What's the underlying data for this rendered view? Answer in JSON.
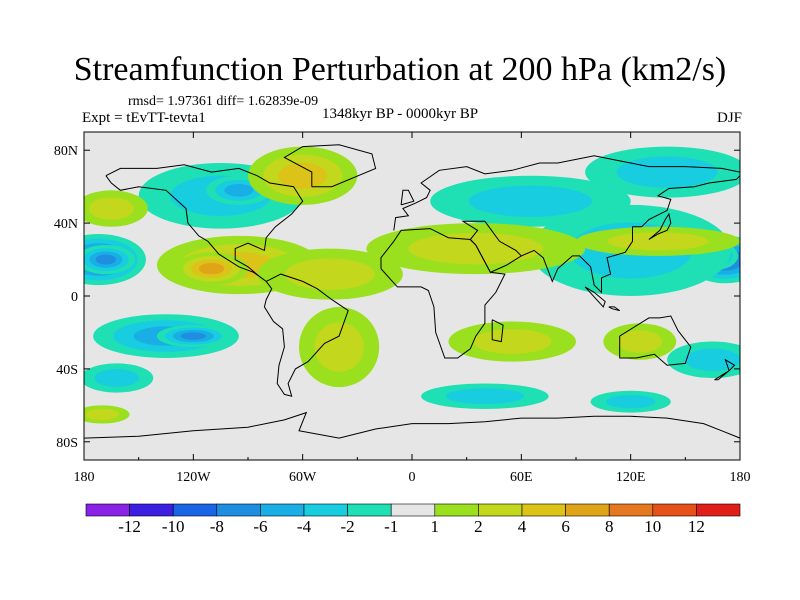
{
  "chart_data": {
    "type": "heatmap",
    "title": "Streamfunction Perturbation at 200 hPa (km2/s)",
    "stats": "rmsd= 1.97361  diff= 1.62839e-09",
    "experiment": "Expt = tEvTT-tevta1",
    "period": "1348kyr BP - 0000kyr BP",
    "season": "DJF",
    "xlim": [
      -180,
      180
    ],
    "ylim": [
      -90,
      90
    ],
    "x_ticks": [
      {
        "value": -180,
        "label": "180"
      },
      {
        "value": -120,
        "label": "120W"
      },
      {
        "value": -60,
        "label": "60W"
      },
      {
        "value": 0,
        "label": "0"
      },
      {
        "value": 60,
        "label": "60E"
      },
      {
        "value": 120,
        "label": "120E"
      },
      {
        "value": 180,
        "label": "180"
      }
    ],
    "y_ticks": [
      {
        "value": 80,
        "label": "80N"
      },
      {
        "value": 40,
        "label": "40N"
      },
      {
        "value": 0,
        "label": "0"
      },
      {
        "value": -40,
        "label": "40S"
      },
      {
        "value": -80,
        "label": "80S"
      }
    ],
    "colorbar": {
      "colors": [
        "#8a23e6",
        "#3c1fe0",
        "#1a64e6",
        "#1f8ee0",
        "#19afe6",
        "#19cde0",
        "#1fe0b4",
        "#e6e6e6",
        "#9be01f",
        "#c3d71c",
        "#dcc318",
        "#e0a419",
        "#e6781f",
        "#e65019",
        "#e11e19"
      ],
      "labels": [
        "-12",
        "-10",
        "-8",
        "-6",
        "-4",
        "-2",
        "-1",
        "1",
        "2",
        "4",
        "6",
        "8",
        "10",
        "12"
      ]
    },
    "anomalies": [
      {
        "lon": -172,
        "lat": 20,
        "rlon": 26,
        "rlat": 14,
        "v": -9
      },
      {
        "lon": -168,
        "lat": 20,
        "rlon": 16,
        "rlat": 8,
        "v": -7
      },
      {
        "lon": 172,
        "lat": 20,
        "rlon": 22,
        "rlat": 13,
        "v": -9
      },
      {
        "lon": 165,
        "lat": 22,
        "rlon": 14,
        "rlat": 8,
        "v": -7
      },
      {
        "lon": 120,
        "lat": 25,
        "rlon": 55,
        "rlat": 25,
        "v": -3
      },
      {
        "lon": 135,
        "lat": 30,
        "rlon": 45,
        "rlat": 8,
        "v": 3
      },
      {
        "lon": 140,
        "lat": 68,
        "rlon": 45,
        "rlat": 14,
        "v": -2
      },
      {
        "lon": 65,
        "lat": 52,
        "rlon": 55,
        "rlat": 14,
        "v": -3
      },
      {
        "lon": -105,
        "lat": 55,
        "rlon": 45,
        "rlat": 18,
        "v": -3
      },
      {
        "lon": -95,
        "lat": 58,
        "rlon": 18,
        "rlat": 8,
        "v": -5
      },
      {
        "lon": -60,
        "lat": 66,
        "rlon": 30,
        "rlat": 16,
        "v": 4
      },
      {
        "lon": -165,
        "lat": 48,
        "rlon": 20,
        "rlat": 10,
        "v": 3
      },
      {
        "lon": -95,
        "lat": 17,
        "rlon": 45,
        "rlat": 16,
        "v": 5
      },
      {
        "lon": -110,
        "lat": 15,
        "rlon": 20,
        "rlat": 9,
        "v": 7
      },
      {
        "lon": -45,
        "lat": 12,
        "rlon": 40,
        "rlat": 14,
        "v": 3
      },
      {
        "lon": 35,
        "lat": 26,
        "rlon": 60,
        "rlat": 14,
        "v": 3
      },
      {
        "lon": -135,
        "lat": -22,
        "rlon": 40,
        "rlat": 12,
        "v": -4
      },
      {
        "lon": -120,
        "lat": -22,
        "rlon": 20,
        "rlat": 6,
        "v": -7
      },
      {
        "lon": -162,
        "lat": -45,
        "rlon": 20,
        "rlat": 8,
        "v": -3
      },
      {
        "lon": -40,
        "lat": -28,
        "rlon": 22,
        "rlat": 22,
        "v": 3
      },
      {
        "lon": 55,
        "lat": -25,
        "rlon": 35,
        "rlat": 11,
        "v": 3
      },
      {
        "lon": 165,
        "lat": -35,
        "rlon": 25,
        "rlat": 10,
        "v": -3
      },
      {
        "lon": 40,
        "lat": -55,
        "rlon": 35,
        "rlat": 7,
        "v": -2
      },
      {
        "lon": 120,
        "lat": -58,
        "rlon": 22,
        "rlat": 6,
        "v": -2
      },
      {
        "lon": 125,
        "lat": -25,
        "rlon": 20,
        "rlat": 10,
        "v": 2
      },
      {
        "lon": -170,
        "lat": -65,
        "rlon": 15,
        "rlat": 5,
        "v": 2
      }
    ]
  }
}
